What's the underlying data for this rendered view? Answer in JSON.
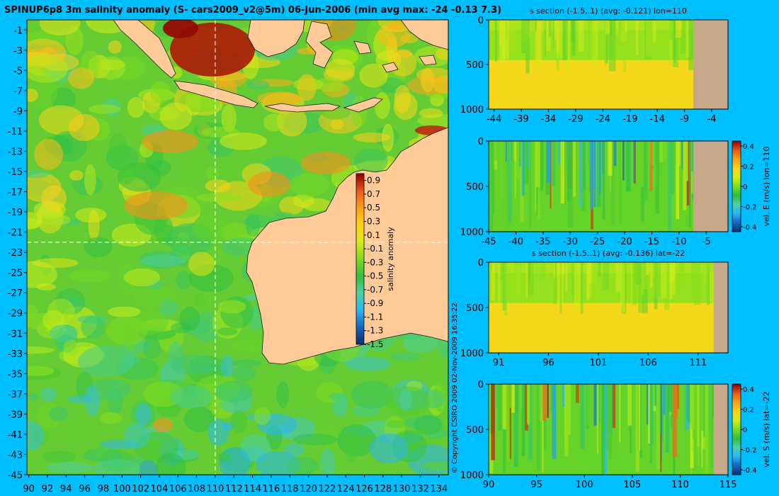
{
  "main_title": "SPINUP6p8 3m salinity anomaly (S- cars2009_v2@5m) 06-Jun-2006 (min avg max: -24 -0.13 7.3)",
  "copyright": "© Copyright CSIRO 2009   02-Nov-2009 16:35:22",
  "colors": {
    "background": "#00bfff",
    "land": "#ffcc99",
    "section_land": "#c8a88a",
    "guide_line": "#ffffff"
  },
  "colormap": [
    "#08306b",
    "#1565c0",
    "#29b6f6",
    "#4dd0a6",
    "#2fbf3f",
    "#7ddc1f",
    "#d4ee1a",
    "#ffd21a",
    "#ff9f1a",
    "#e8561a",
    "#8b0000"
  ],
  "chart_data": [
    {
      "id": "map",
      "type": "heatmap",
      "title": "SPINUP6p8 3m salinity anomaly (S- cars2009_v2@5m) 06-Jun-2006 (min avg max: -24 -0.13 7.3)",
      "x_ticks": [
        "90",
        "92",
        "94",
        "96",
        "98",
        "100",
        "102",
        "104",
        "106",
        "108",
        "110",
        "112",
        "114",
        "116",
        "118",
        "120",
        "122",
        "124",
        "126",
        "128",
        "130",
        "132",
        "134"
      ],
      "y_ticks": [
        "-1",
        "-3",
        "-5",
        "-7",
        "-9",
        "-11",
        "-13",
        "-15",
        "-17",
        "-19",
        "-21",
        "-23",
        "-25",
        "-27",
        "-29",
        "-31",
        "-33",
        "-35",
        "-37",
        "-39",
        "-41",
        "-43",
        "-45"
      ],
      "xlim": [
        89.8,
        135
      ],
      "ylim": [
        -45,
        0
      ],
      "guides": {
        "lon": 110,
        "lat": -22
      },
      "colorbar": {
        "label": "salinity anomaly",
        "ticks": [
          "0.9",
          "0.7",
          "0.5",
          "0.3",
          "0.1",
          "-0.1",
          "-0.3",
          "-0.5",
          "-0.7",
          "-0.9",
          "-1.1",
          "-1.3",
          "-1.5"
        ],
        "range": [
          -1.5,
          1.0
        ]
      }
    },
    {
      "id": "section-s-lon",
      "type": "heatmap",
      "title": "s section (-1.5..1) (avg: -0.121) lon=110",
      "x_ticks": [
        "-44",
        "-39",
        "-34",
        "-29",
        "-24",
        "-19",
        "-14",
        "-9",
        "-4"
      ],
      "y_ticks": [
        "0",
        "500",
        "1000"
      ],
      "xlim": [
        -45,
        -1
      ],
      "ylim": [
        0,
        1000
      ]
    },
    {
      "id": "section-vel-e",
      "type": "heatmap",
      "title": "",
      "x_ticks": [
        "-45",
        "-40",
        "-35",
        "-30",
        "-25",
        "-20",
        "-15",
        "-10",
        "-5"
      ],
      "y_ticks": [
        "0",
        "500",
        "1000"
      ],
      "xlim": [
        -45,
        -1
      ],
      "ylim": [
        0,
        1000
      ],
      "colorbar": {
        "label": "vel. E (m/s) lon=110",
        "ticks": [
          "0.4",
          "0.2",
          "0",
          "-0.2",
          "-0.4"
        ],
        "range": [
          -0.45,
          0.45
        ]
      }
    },
    {
      "id": "section-s-lat",
      "type": "heatmap",
      "title": "s section (-1.5..1) (avg: -0.136) lat=-22",
      "x_ticks": [
        "91",
        "96",
        "101",
        "106",
        "111"
      ],
      "y_ticks": [
        "0",
        "500",
        "1000"
      ],
      "xlim": [
        90,
        114
      ],
      "ylim": [
        0,
        1000
      ]
    },
    {
      "id": "section-vel-s",
      "type": "heatmap",
      "title": "",
      "x_ticks": [
        "90",
        "95",
        "100",
        "105",
        "110",
        "115"
      ],
      "y_ticks": [
        "0",
        "500",
        "1000"
      ],
      "xlim": [
        90,
        115
      ],
      "ylim": [
        0,
        1000
      ],
      "colorbar": {
        "label": "vel. S (m/s) lat=-22",
        "ticks": [
          "0.4",
          "0.2",
          "0",
          "-0.2",
          "-0.4"
        ],
        "range": [
          -0.45,
          0.45
        ]
      }
    }
  ]
}
